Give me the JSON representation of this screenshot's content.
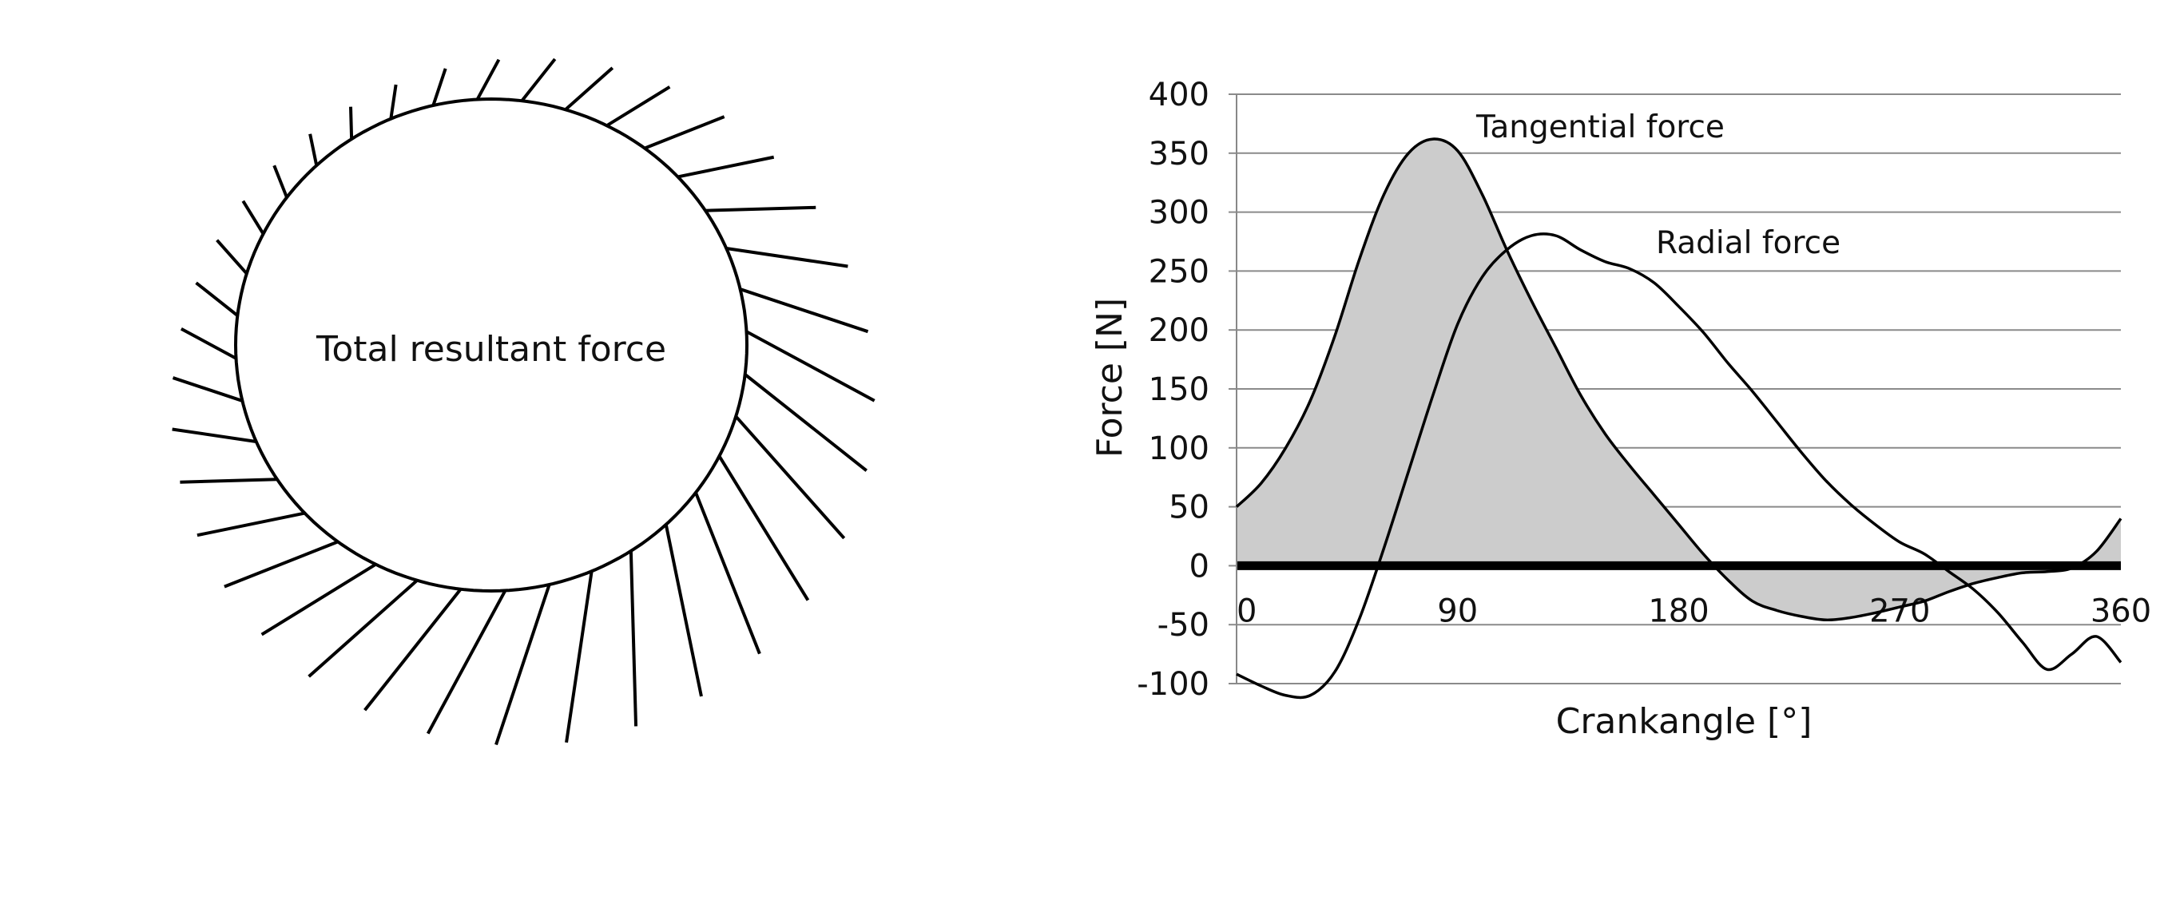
{
  "chart_data": [
    {
      "type": "polar-force-diagram",
      "label": "Total resultant force",
      "description_values_note": "",
      "vectors_count": 36
    },
    {
      "type": "line",
      "xlabel": "Crankangle [°]",
      "ylabel": "Force [N]",
      "xlim": [
        0,
        360
      ],
      "ylim": [
        -100,
        400
      ],
      "x_ticks": [
        "0",
        "90",
        "180",
        "270",
        "360"
      ],
      "y_ticks": [
        "400",
        "350",
        "300",
        "250",
        "200",
        "150",
        "100",
        "50",
        "0",
        "-50",
        "-100"
      ],
      "grid": true,
      "series": [
        {
          "name": "Tangential force",
          "fill": "#cccccc",
          "x": [
            0,
            10,
            20,
            30,
            40,
            50,
            60,
            70,
            80,
            90,
            100,
            110,
            120,
            130,
            140,
            150,
            160,
            170,
            180,
            190,
            200,
            210,
            220,
            230,
            240,
            250,
            260,
            270,
            280,
            290,
            300,
            310,
            320,
            330,
            340,
            350,
            360
          ],
          "values": [
            50,
            70,
            100,
            140,
            195,
            260,
            315,
            350,
            362,
            352,
            315,
            268,
            225,
            185,
            145,
            112,
            85,
            60,
            35,
            10,
            -12,
            -30,
            -38,
            -43,
            -46,
            -44,
            -40,
            -35,
            -30,
            -22,
            -15,
            -10,
            -6,
            -5,
            -2,
            12,
            40
          ]
        },
        {
          "name": "Radial force",
          "x": [
            0,
            10,
            20,
            30,
            40,
            50,
            60,
            70,
            80,
            90,
            100,
            110,
            120,
            130,
            140,
            150,
            160,
            170,
            180,
            190,
            200,
            210,
            220,
            230,
            240,
            250,
            260,
            270,
            280,
            290,
            300,
            310,
            320,
            330,
            340,
            350,
            360
          ],
          "values": [
            -92,
            -102,
            -110,
            -110,
            -90,
            -45,
            15,
            80,
            145,
            205,
            245,
            268,
            280,
            280,
            268,
            258,
            252,
            240,
            220,
            198,
            172,
            148,
            122,
            96,
            72,
            52,
            35,
            20,
            10,
            -5,
            -20,
            -40,
            -65,
            -88,
            -75,
            -60,
            -82
          ]
        }
      ],
      "annotations": [
        "Tangential force",
        "Radial force"
      ]
    }
  ]
}
